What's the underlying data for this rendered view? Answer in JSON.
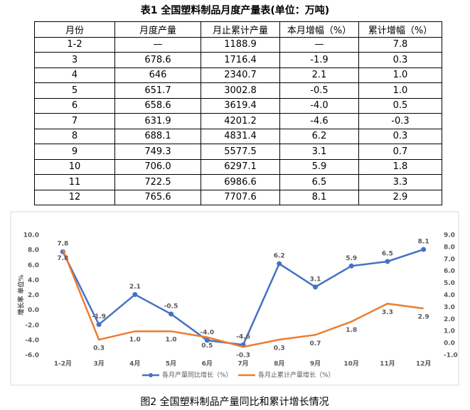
{
  "table": {
    "title": "表1 全国塑料制品月度产量表(单位：万吨)",
    "header": [
      "月份",
      "月度产量",
      "月止累计产量",
      "本月增幅（%）",
      "累计增幅（%）"
    ],
    "rows": [
      [
        "1-2",
        "—",
        "1188.9",
        "—",
        "7.8"
      ],
      [
        "3",
        "678.6",
        "1716.4",
        "-1.9",
        "0.3"
      ],
      [
        "4",
        "646",
        "2340.7",
        "2.1",
        "1.0"
      ],
      [
        "5",
        "651.7",
        "3002.8",
        "-0.5",
        "1.0"
      ],
      [
        "6",
        "658.6",
        "3619.4",
        "-4.0",
        "0.5"
      ],
      [
        "7",
        "631.9",
        "4201.2",
        "-4.6",
        "-0.3"
      ],
      [
        "8",
        "688.1",
        "4831.4",
        "6.2",
        "0.3"
      ],
      [
        "9",
        "749.3",
        "5577.5",
        "3.1",
        "0.7"
      ],
      [
        "10",
        "706.0",
        "6297.1",
        "5.9",
        "1.8"
      ],
      [
        "11",
        "722.5",
        "6986.6",
        "6.5",
        "3.3"
      ],
      [
        "12",
        "765.6",
        "7707.6",
        "8.1",
        "2.9"
      ]
    ]
  },
  "chart_data": {
    "type": "line",
    "y_label": "增长率 单位%",
    "caption": "图2 全国塑料制品产量同比和累计增长情况",
    "categories": [
      "1-2月",
      "3月",
      "4月",
      "5月",
      "6月",
      "7月",
      "8月",
      "9月",
      "10月",
      "11月",
      "12月"
    ],
    "series": [
      {
        "name": "各月产量同比增长（%）",
        "color": "#4472c4",
        "values": [
          7.8,
          -1.9,
          2.1,
          -0.5,
          -4.0,
          -4.6,
          6.2,
          3.1,
          5.9,
          6.5,
          8.1
        ],
        "value_labels": [
          "7.8",
          "-1.9",
          "2.1",
          "-0.5",
          "-4.0",
          "-4.6",
          "6.2",
          "3.1",
          "5.9",
          "6.5",
          "8.1"
        ]
      },
      {
        "name": "各月止累计产量增长（%）",
        "color": "#ed7d31",
        "axis": "y2",
        "values": [
          7.8,
          0.3,
          1.0,
          1.0,
          0.5,
          -0.3,
          0.3,
          0.7,
          1.8,
          3.3,
          2.9
        ],
        "value_labels": [
          "7.8",
          "0.3",
          "1.0",
          "1.0",
          "0.5",
          "-0.3",
          "0.3",
          "0.7",
          "1.8",
          "3.3",
          "2.9"
        ]
      }
    ],
    "ylim": [
      -6,
      10
    ],
    "yticks": [
      {
        "value": -6,
        "label": "-6.0"
      },
      {
        "value": -4,
        "label": "-4.0"
      },
      {
        "value": -2,
        "label": "-2.0"
      },
      {
        "value": 0,
        "label": "0.0"
      },
      {
        "value": 2,
        "label": "2.0"
      },
      {
        "value": 4,
        "label": "4.0"
      },
      {
        "value": 6,
        "label": "6.0"
      },
      {
        "value": 8,
        "label": "8.0"
      },
      {
        "value": 10,
        "label": "10.0"
      }
    ],
    "y2lim": [
      -1,
      9
    ],
    "y2ticks": [
      {
        "value": -1,
        "label": "-1.0"
      },
      {
        "value": 0,
        "label": "0.0"
      },
      {
        "value": 1,
        "label": "1.0"
      },
      {
        "value": 2,
        "label": "2.0"
      },
      {
        "value": 3,
        "label": "3.0"
      },
      {
        "value": 4,
        "label": "4.0"
      },
      {
        "value": 5,
        "label": "5.0"
      },
      {
        "value": 6,
        "label": "6.0"
      },
      {
        "value": 7,
        "label": "7.0"
      },
      {
        "value": 8,
        "label": "8.0"
      },
      {
        "value": 9,
        "label": "9.0"
      }
    ]
  }
}
